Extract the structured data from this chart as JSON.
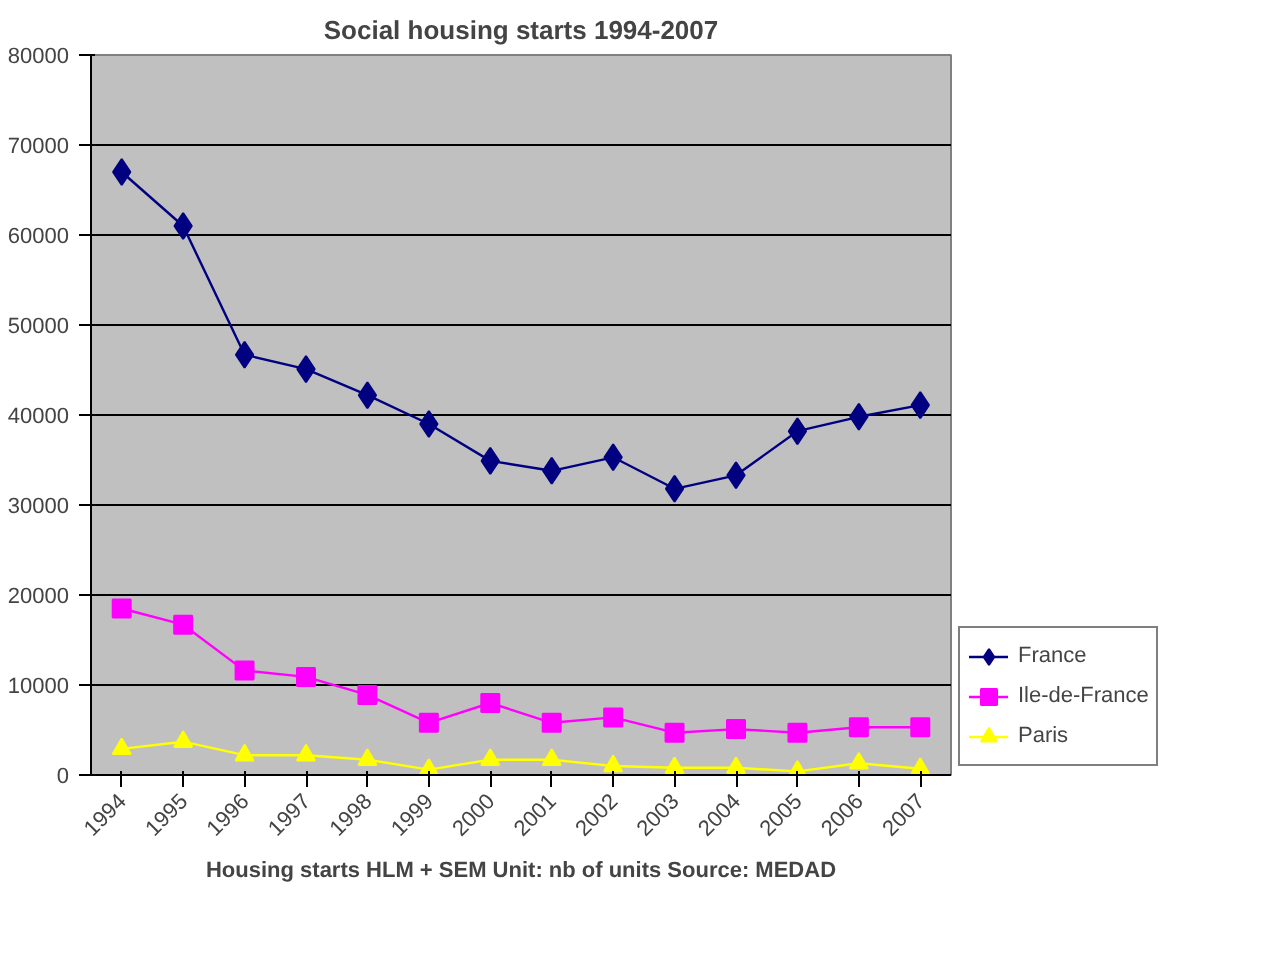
{
  "chart_data": {
    "type": "line",
    "title": "Social housing starts 1994-2007",
    "xlabel": "Housing starts HLM + SEM Unit: nb of units Source: MEDAD",
    "categories": [
      "1994",
      "1995",
      "1996",
      "1997",
      "1998",
      "1999",
      "2000",
      "2001",
      "2002",
      "2003",
      "2004",
      "2005",
      "2006",
      "2007"
    ],
    "series": [
      {
        "name": "France",
        "color": "#000080",
        "marker": "diamond",
        "values": [
          67000,
          61000,
          46700,
          45100,
          42200,
          39000,
          34900,
          33800,
          35300,
          31800,
          33300,
          38200,
          39800,
          41100
        ]
      },
      {
        "name": "Ile-de-France",
        "color": "#ff00ff",
        "marker": "square",
        "values": [
          18500,
          16700,
          11600,
          10900,
          8900,
          5800,
          8000,
          5800,
          6400,
          4700,
          5100,
          4700,
          5300,
          5300
        ]
      },
      {
        "name": "Paris",
        "color": "#ffff00",
        "marker": "triangle",
        "values": [
          2900,
          3700,
          2200,
          2200,
          1700,
          600,
          1700,
          1700,
          1000,
          800,
          800,
          400,
          1300,
          700
        ]
      }
    ],
    "ylim": [
      0,
      80000
    ],
    "yticks": [
      0,
      10000,
      20000,
      30000,
      40000,
      50000,
      60000,
      70000,
      80000
    ],
    "grid": "y",
    "legend": "bottom right"
  }
}
